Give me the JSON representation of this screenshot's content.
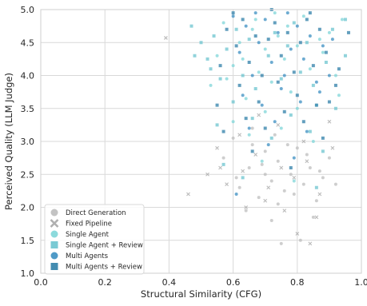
{
  "chart_data": {
    "type": "scatter",
    "xlabel": "Structural Similarity (CFG)",
    "ylabel": "Perceived Quality (LLM Judge)",
    "xlim": [
      0.0,
      1.0
    ],
    "ylim": [
      1.0,
      5.0
    ],
    "x_ticks": [
      "0.0",
      "0.2",
      "0.4",
      "0.6",
      "0.8",
      "1.0"
    ],
    "y_ticks": [
      "1.0",
      "1.5",
      "2.0",
      "2.5",
      "3.0",
      "3.5",
      "4.0",
      "4.5",
      "5.0"
    ],
    "grid": true,
    "legend_position": "bottom-left",
    "series": [
      {
        "name": "Direct Generation",
        "color": "#bdbdbd",
        "marker": "circle",
        "points": [
          [
            0.57,
            2.75
          ],
          [
            0.62,
            2.3
          ],
          [
            0.65,
            2.6
          ],
          [
            0.68,
            2.15
          ],
          [
            0.7,
            2.85
          ],
          [
            0.72,
            2.4
          ],
          [
            0.74,
            2.7
          ],
          [
            0.76,
            2.25
          ],
          [
            0.78,
            2.5
          ],
          [
            0.8,
            2.9
          ],
          [
            0.82,
            2.35
          ],
          [
            0.84,
            2.6
          ],
          [
            0.86,
            2.1
          ],
          [
            0.88,
            2.45
          ],
          [
            0.9,
            2.75
          ],
          [
            0.66,
            2.95
          ],
          [
            0.7,
            2.5
          ],
          [
            0.74,
            2.05
          ],
          [
            0.79,
            2.2
          ],
          [
            0.83,
            2.8
          ],
          [
            0.87,
            2.55
          ],
          [
            0.61,
            2.45
          ],
          [
            0.69,
            2.65
          ],
          [
            0.77,
            2.95
          ],
          [
            0.81,
            1.5
          ],
          [
            0.85,
            1.85
          ],
          [
            0.75,
            1.45
          ],
          [
            0.64,
            1.95
          ],
          [
            0.72,
            1.8
          ],
          [
            0.92,
            2.35
          ],
          [
            0.6,
            3.05
          ],
          [
            0.66,
            3.2
          ],
          [
            0.73,
            3.1
          ]
        ]
      },
      {
        "name": "Fixed Pipeline",
        "color": "#a6a6a6",
        "marker": "x",
        "points": [
          [
            0.39,
            4.57
          ],
          [
            0.46,
            2.2
          ],
          [
            0.52,
            2.5
          ],
          [
            0.55,
            2.9
          ],
          [
            0.58,
            2.35
          ],
          [
            0.63,
            2.55
          ],
          [
            0.67,
            2.8
          ],
          [
            0.71,
            2.3
          ],
          [
            0.75,
            2.6
          ],
          [
            0.79,
            2.45
          ],
          [
            0.83,
            2.7
          ],
          [
            0.87,
            2.2
          ],
          [
            0.91,
            2.9
          ],
          [
            0.64,
            2.0
          ],
          [
            0.8,
            1.6
          ],
          [
            0.76,
            1.95
          ],
          [
            0.86,
            1.85
          ],
          [
            0.56,
            2.6
          ],
          [
            0.62,
            3.1
          ],
          [
            0.68,
            3.4
          ],
          [
            0.74,
            3.25
          ],
          [
            0.82,
            3.0
          ],
          [
            0.9,
            3.3
          ],
          [
            0.7,
            2.1
          ],
          [
            0.84,
            1.45
          ]
        ]
      },
      {
        "name": "Single Agent",
        "color": "#7fd6d8",
        "marker": "circle",
        "points": [
          [
            0.53,
            3.85
          ],
          [
            0.55,
            4.3
          ],
          [
            0.57,
            4.8
          ],
          [
            0.6,
            4.15
          ],
          [
            0.62,
            4.5
          ],
          [
            0.64,
            3.65
          ],
          [
            0.66,
            4.7
          ],
          [
            0.68,
            4.05
          ],
          [
            0.7,
            4.4
          ],
          [
            0.72,
            3.9
          ],
          [
            0.74,
            4.6
          ],
          [
            0.76,
            4.25
          ],
          [
            0.78,
            3.75
          ],
          [
            0.8,
            4.45
          ],
          [
            0.82,
            4.9
          ],
          [
            0.84,
            4.1
          ],
          [
            0.86,
            3.55
          ],
          [
            0.88,
            4.35
          ],
          [
            0.9,
            4.65
          ],
          [
            0.92,
            4.0
          ],
          [
            0.94,
            4.85
          ],
          [
            0.6,
            3.3
          ],
          [
            0.65,
            3.1
          ],
          [
            0.7,
            3.45
          ],
          [
            0.75,
            3.2
          ],
          [
            0.8,
            3.5
          ],
          [
            0.85,
            3.0
          ],
          [
            0.58,
            3.95
          ],
          [
            0.63,
            4.25
          ],
          [
            0.67,
            4.85
          ],
          [
            0.73,
            4.95
          ],
          [
            0.77,
            4.75
          ],
          [
            0.87,
            4.55
          ],
          [
            0.93,
            3.7
          ],
          [
            0.69,
            2.7
          ],
          [
            0.79,
            2.4
          ]
        ]
      },
      {
        "name": "Single Agent + Review",
        "color": "#6cc4cf",
        "marker": "square",
        "points": [
          [
            0.47,
            4.75
          ],
          [
            0.5,
            4.5
          ],
          [
            0.52,
            4.25
          ],
          [
            0.54,
            4.6
          ],
          [
            0.56,
            3.95
          ],
          [
            0.58,
            4.4
          ],
          [
            0.61,
            4.7
          ],
          [
            0.63,
            4.0
          ],
          [
            0.65,
            4.55
          ],
          [
            0.67,
            3.8
          ],
          [
            0.71,
            4.3
          ],
          [
            0.73,
            4.65
          ],
          [
            0.75,
            3.95
          ],
          [
            0.77,
            4.45
          ],
          [
            0.79,
            4.8
          ],
          [
            0.81,
            4.05
          ],
          [
            0.83,
            4.5
          ],
          [
            0.85,
            3.85
          ],
          [
            0.89,
            4.2
          ],
          [
            0.91,
            4.7
          ],
          [
            0.95,
            4.3
          ],
          [
            0.55,
            3.25
          ],
          [
            0.6,
            3.6
          ],
          [
            0.66,
            3.35
          ],
          [
            0.72,
            3.05
          ],
          [
            0.78,
            3.4
          ],
          [
            0.84,
            3.15
          ],
          [
            0.88,
            2.85
          ],
          [
            0.92,
            3.5
          ],
          [
            0.57,
            2.65
          ],
          [
            0.63,
            2.45
          ],
          [
            0.86,
            2.3
          ],
          [
            0.53,
            4.1
          ],
          [
            0.48,
            4.3
          ],
          [
            0.95,
            4.85
          ]
        ]
      },
      {
        "name": "Multi Agents",
        "color": "#3c8fc1",
        "marker": "circle",
        "points": [
          [
            0.6,
            4.9
          ],
          [
            0.62,
            4.35
          ],
          [
            0.64,
            4.75
          ],
          [
            0.66,
            4.0
          ],
          [
            0.68,
            4.5
          ],
          [
            0.7,
            4.85
          ],
          [
            0.72,
            4.2
          ],
          [
            0.74,
            4.65
          ],
          [
            0.76,
            4.0
          ],
          [
            0.78,
            4.4
          ],
          [
            0.8,
            4.75
          ],
          [
            0.82,
            4.25
          ],
          [
            0.84,
            4.6
          ],
          [
            0.86,
            3.9
          ],
          [
            0.88,
            4.45
          ],
          [
            0.9,
            4.0
          ],
          [
            0.63,
            3.7
          ],
          [
            0.69,
            3.55
          ],
          [
            0.75,
            3.8
          ],
          [
            0.81,
            3.6
          ],
          [
            0.87,
            3.75
          ],
          [
            0.65,
            3.2
          ],
          [
            0.73,
            3.3
          ],
          [
            0.83,
            3.15
          ],
          [
            0.71,
            2.95
          ],
          [
            0.79,
            2.75
          ],
          [
            0.67,
            4.95
          ],
          [
            0.77,
            4.95
          ],
          [
            0.61,
            2.2
          ],
          [
            0.91,
            4.55
          ]
        ]
      },
      {
        "name": "Multi Agents + Review",
        "color": "#2f7fa8",
        "marker": "square",
        "points": [
          [
            0.56,
            4.15
          ],
          [
            0.58,
            4.7
          ],
          [
            0.61,
            4.45
          ],
          [
            0.63,
            4.85
          ],
          [
            0.65,
            4.2
          ],
          [
            0.67,
            4.6
          ],
          [
            0.69,
            4.0
          ],
          [
            0.71,
            4.55
          ],
          [
            0.73,
            4.8
          ],
          [
            0.75,
            4.3
          ],
          [
            0.77,
            4.65
          ],
          [
            0.79,
            4.05
          ],
          [
            0.81,
            4.5
          ],
          [
            0.83,
            4.85
          ],
          [
            0.85,
            4.15
          ],
          [
            0.87,
            4.7
          ],
          [
            0.89,
            4.35
          ],
          [
            0.93,
            4.1
          ],
          [
            0.62,
            3.85
          ],
          [
            0.68,
            3.6
          ],
          [
            0.74,
            3.9
          ],
          [
            0.8,
            3.7
          ],
          [
            0.86,
            3.55
          ],
          [
            0.92,
            3.85
          ],
          [
            0.64,
            3.35
          ],
          [
            0.7,
            3.2
          ],
          [
            0.76,
            3.45
          ],
          [
            0.82,
            3.3
          ],
          [
            0.88,
            3.05
          ],
          [
            0.66,
            2.85
          ],
          [
            0.78,
            2.6
          ],
          [
            0.9,
            3.6
          ],
          [
            0.6,
            4.95
          ],
          [
            0.72,
            5.0
          ],
          [
            0.84,
            4.95
          ],
          [
            0.55,
            3.55
          ],
          [
            0.57,
            3.15
          ],
          [
            0.96,
            4.65
          ]
        ]
      }
    ]
  }
}
